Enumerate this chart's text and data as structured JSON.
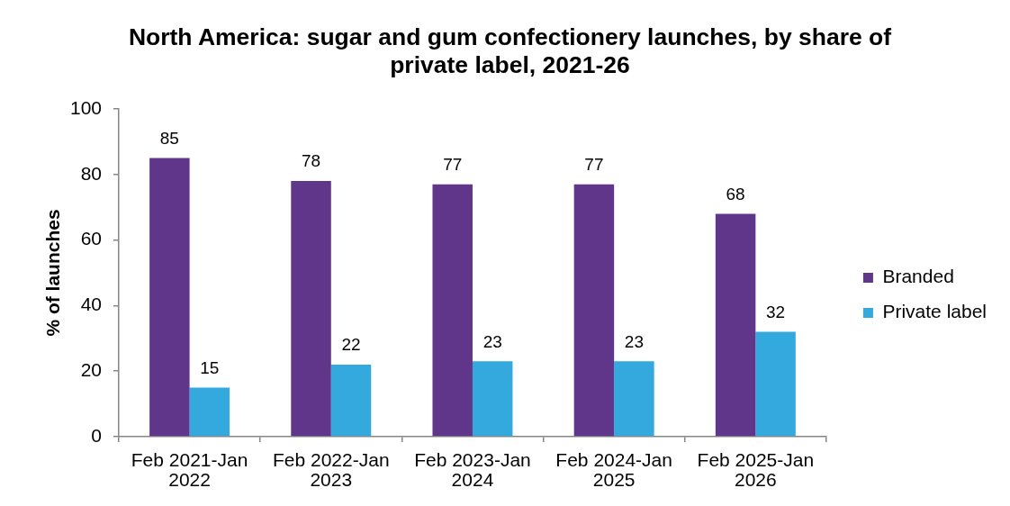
{
  "chart_data": {
    "type": "bar",
    "title": "North America: sugar and gum confectionery launches, by share of private label, 2021-26",
    "ylabel": "% of launches",
    "categories": [
      "Feb 2021-Jan 2022",
      "Feb 2022-Jan 2023",
      "Feb 2023-Jan 2024",
      "Feb 2024-Jan 2025",
      "Feb 2025-Jan 2026"
    ],
    "series": [
      {
        "name": "Branded",
        "color": "#5f3689",
        "values": [
          85,
          78,
          77,
          77,
          68
        ]
      },
      {
        "name": "Private label",
        "color": "#33a9dd",
        "values": [
          15,
          22,
          23,
          23,
          32
        ]
      }
    ],
    "ylim": [
      0,
      100
    ],
    "yticks": [
      0,
      20,
      40,
      60,
      80,
      100
    ],
    "grid": false,
    "legend": "right",
    "data_labels": true
  }
}
